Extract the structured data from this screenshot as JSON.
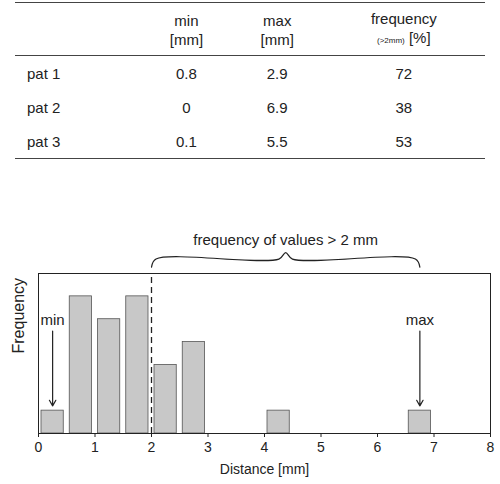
{
  "table": {
    "header": [
      {
        "text": ""
      },
      {
        "text": "min",
        "unit": "[mm]"
      },
      {
        "text": "max",
        "unit": "[mm]"
      },
      {
        "text": "frequency",
        "qualifier": "(>2mm)",
        "unit": "[%]"
      }
    ],
    "rows": [
      [
        "pat 1",
        "0.8",
        "2.9",
        "72"
      ],
      [
        "pat 2",
        "0",
        "6.9",
        "38"
      ],
      [
        "pat 3",
        "0.1",
        "5.5",
        "53"
      ]
    ]
  },
  "chart_data": {
    "type": "histogram",
    "x_label": "Distance [mm]",
    "y_label": "Frequency",
    "bins": [
      0,
      0.5,
      1,
      1.5,
      2,
      2.5,
      3,
      3.5,
      4,
      4.5,
      5,
      5.5,
      6,
      6.5,
      7
    ],
    "values": [
      1,
      6,
      5,
      6,
      3,
      4,
      0,
      0,
      1,
      0,
      0,
      0,
      0,
      1
    ],
    "color": "#c8c8c8",
    "xlim": [
      0,
      8
    ],
    "xticks": [
      0,
      1,
      2,
      3,
      4,
      5,
      6,
      7,
      8
    ],
    "ylim": [
      0,
      7
    ],
    "yticks": [],
    "tick_labels": "x",
    "reference_line": {
      "x": 2,
      "line_style": "dashed"
    },
    "annotations": [
      {
        "text": "min",
        "x": 0.25
      },
      {
        "text": "max",
        "x": 6.75
      },
      {
        "text": "frequency of values > 2 mm",
        "x1": 2,
        "x2": 6.75
      }
    ]
  }
}
